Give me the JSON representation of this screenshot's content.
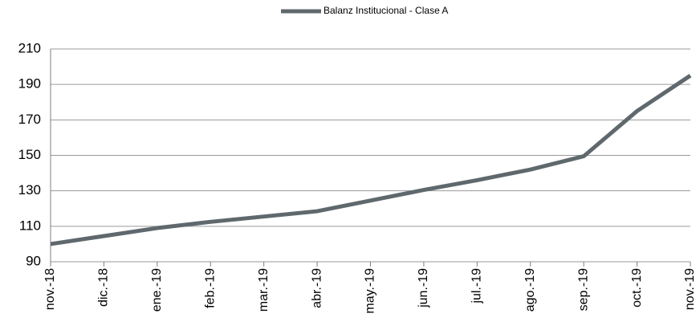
{
  "chart_data": {
    "type": "line",
    "categories": [
      "nov.-18",
      "dic.-18",
      "ene.-19",
      "feb.-19",
      "mar.-19",
      "abr.-19",
      "may.-19",
      "jun.-19",
      "jul.-19",
      "ago.-19",
      "sep.-19",
      "oct.-19",
      "nov.-19"
    ],
    "series": [
      {
        "name": "Balanz Institucional - Clase A",
        "color": "#5f686d",
        "values": [
          100,
          104.5,
          109,
          112.5,
          115.5,
          118.5,
          124.5,
          130.5,
          136,
          142,
          149.5,
          175,
          195
        ]
      }
    ],
    "ylim": [
      90,
      210
    ],
    "yticks": [
      90,
      110,
      130,
      150,
      170,
      190,
      210
    ],
    "grid": true,
    "legend": "top"
  }
}
